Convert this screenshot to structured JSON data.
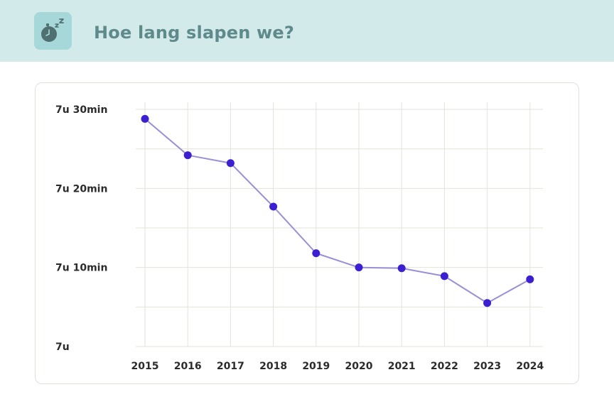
{
  "header": {
    "title": "Hoe lang slapen we?",
    "icon": "stopwatch-sleep-icon"
  },
  "colors": {
    "header_bg": "#d3eaea",
    "icon_bg": "#a6d8d9",
    "icon_fg": "#4f6f71",
    "title": "#5f8a8c",
    "line": "#9a8fd4",
    "point": "#3b1fd1",
    "grid": "#e6e2da"
  },
  "chart_data": {
    "type": "line",
    "title": "",
    "xlabel": "",
    "ylabel": "",
    "grid": true,
    "categories": [
      "2015",
      "2016",
      "2017",
      "2018",
      "2019",
      "2020",
      "2021",
      "2022",
      "2023",
      "2024"
    ],
    "series": [
      {
        "name": "",
        "values": [
          448.8,
          444.2,
          443.2,
          437.7,
          431.8,
          430.0,
          429.9,
          428.9,
          425.5,
          428.5
        ]
      }
    ],
    "y_unit": "minutes",
    "ylim": [
      420,
      450
    ],
    "yticks": [
      420,
      430,
      440,
      450
    ],
    "ytick_labels": [
      "7u",
      "7u 10min",
      "7u 20min",
      "7u 30min"
    ]
  }
}
